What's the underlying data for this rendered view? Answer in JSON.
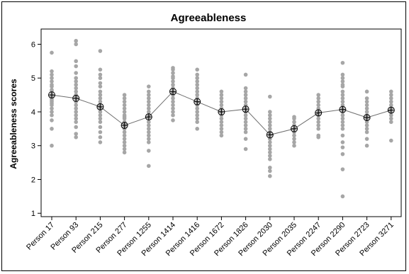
{
  "chart_data": {
    "type": "scatter",
    "title": "Agreeableness",
    "xlabel": "",
    "ylabel": "Agreeableness scores",
    "ylim": [
      0.9,
      6.45
    ],
    "yticks": [
      1,
      2,
      3,
      4,
      5,
      6
    ],
    "categories": [
      "Person 17",
      "Person 93",
      "Person 215",
      "Person 277",
      "Person 1255",
      "Person 1414",
      "Person 1416",
      "Person 1672",
      "Person 1826",
      "Person 2030",
      "Person 2035",
      "Person 2247",
      "Person 2290",
      "Person 2723",
      "Person 3271"
    ],
    "means": [
      4.5,
      4.4,
      4.15,
      3.6,
      3.85,
      4.6,
      4.3,
      4.0,
      4.08,
      3.32,
      3.5,
      3.97,
      4.07,
      3.83,
      4.05
    ],
    "points": [
      [
        5.75,
        5.2,
        5.1,
        5.0,
        4.9,
        4.8,
        4.75,
        4.65,
        4.6,
        4.5,
        4.45,
        4.4,
        4.35,
        4.3,
        4.25,
        4.2,
        4.1,
        4.0,
        3.9,
        3.75,
        3.5,
        3.0
      ],
      [
        6.1,
        6.0,
        5.5,
        5.35,
        5.15,
        5.0,
        4.9,
        4.8,
        4.7,
        4.6,
        4.5,
        4.45,
        4.4,
        4.3,
        4.2,
        4.1,
        4.0,
        3.9,
        3.8,
        3.7,
        3.55,
        3.35,
        3.25
      ],
      [
        5.8,
        5.25,
        5.1,
        5.0,
        4.85,
        4.75,
        4.6,
        4.5,
        4.4,
        4.3,
        4.2,
        4.1,
        4.0,
        3.9,
        3.8,
        3.7,
        3.55,
        3.4,
        3.25,
        3.1
      ],
      [
        4.5,
        4.4,
        4.3,
        4.2,
        4.1,
        4.0,
        3.9,
        3.85,
        3.8,
        3.7,
        3.65,
        3.6,
        3.55,
        3.5,
        3.4,
        3.3,
        3.2,
        3.1,
        3.0,
        2.9,
        2.8
      ],
      [
        4.75,
        4.6,
        4.5,
        4.4,
        4.3,
        4.2,
        4.1,
        4.0,
        3.9,
        3.8,
        3.7,
        3.6,
        3.5,
        3.4,
        3.3,
        3.2,
        3.1,
        2.85,
        2.4
      ],
      [
        5.3,
        5.25,
        5.15,
        5.05,
        5.0,
        4.9,
        4.8,
        4.7,
        4.6,
        4.5,
        4.4,
        4.3,
        4.2,
        4.1,
        4.0,
        3.9,
        3.75
      ],
      [
        5.25,
        5.1,
        5.0,
        4.9,
        4.8,
        4.7,
        4.6,
        4.5,
        4.4,
        4.3,
        4.2,
        4.1,
        4.0,
        3.9,
        3.8,
        3.7,
        3.5
      ],
      [
        4.6,
        4.5,
        4.4,
        4.3,
        4.2,
        4.1,
        4.0,
        3.9,
        3.8,
        3.7,
        3.6,
        3.5,
        3.4,
        3.3
      ],
      [
        5.1,
        4.7,
        4.6,
        4.5,
        4.4,
        4.3,
        4.2,
        4.1,
        4.0,
        3.9,
        3.8,
        3.7,
        3.6,
        3.5,
        3.4,
        3.2,
        2.9
      ],
      [
        4.45,
        4.0,
        3.9,
        3.8,
        3.7,
        3.6,
        3.5,
        3.4,
        3.3,
        3.2,
        3.1,
        3.0,
        2.9,
        2.8,
        2.7,
        2.6,
        2.35,
        2.25,
        2.1
      ],
      [
        3.85,
        3.8,
        3.7,
        3.6,
        3.5,
        3.4,
        3.3,
        3.2,
        3.1,
        3.0
      ],
      [
        4.5,
        4.4,
        4.3,
        4.2,
        4.1,
        4.0,
        3.9,
        3.8,
        3.7,
        3.6,
        3.5,
        3.3,
        3.25
      ],
      [
        5.45,
        5.1,
        5.0,
        4.9,
        4.8,
        4.75,
        4.6,
        4.5,
        4.4,
        4.3,
        4.2,
        4.1,
        4.0,
        3.9,
        3.8,
        3.7,
        3.6,
        3.5,
        3.3,
        3.1,
        2.95,
        2.75,
        2.3,
        1.5
      ],
      [
        4.6,
        4.4,
        4.3,
        4.2,
        4.1,
        4.0,
        3.9,
        3.8,
        3.7,
        3.6,
        3.5,
        3.4,
        3.2,
        3.0
      ],
      [
        4.6,
        4.5,
        4.4,
        4.3,
        4.2,
        4.1,
        4.0,
        3.9,
        3.8,
        3.7,
        3.15
      ]
    ],
    "grid": false,
    "legend": "none",
    "colors": {
      "points": "#a6a6a6",
      "mean_line": "#6e6e6e",
      "mean_marker": "#000000",
      "axis": "#000000"
    }
  }
}
